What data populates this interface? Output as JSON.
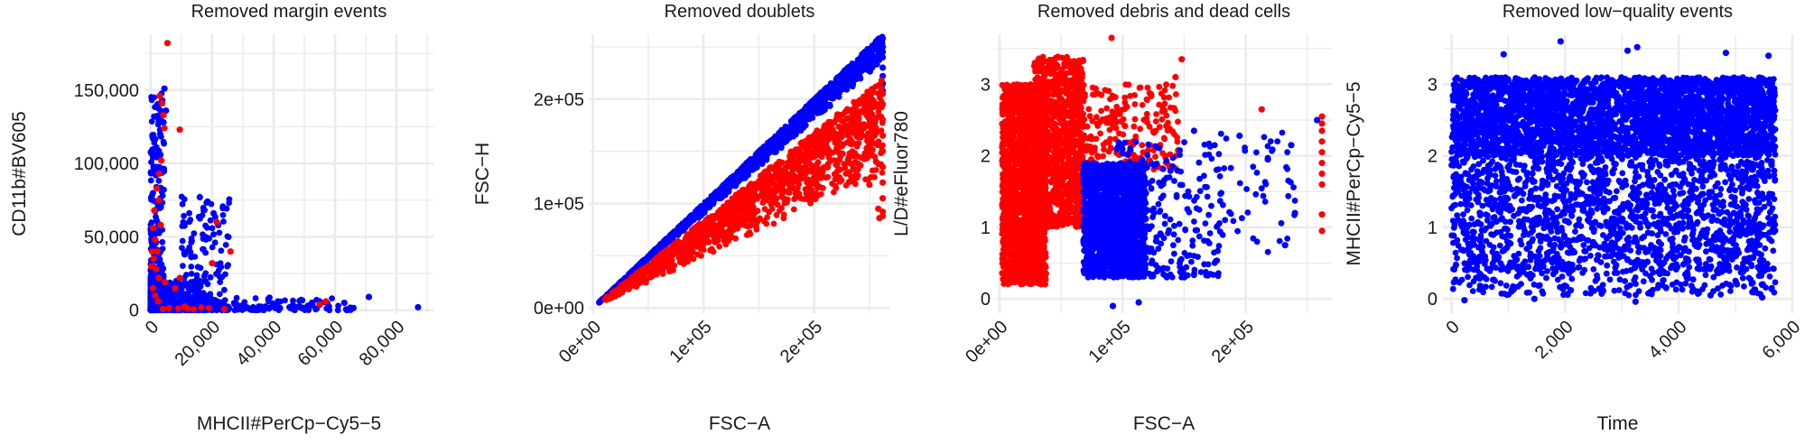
{
  "colors": {
    "kept": "#0000ff",
    "removed": "#ff0000",
    "panel_bg": "#ffffff",
    "grid": "#ebebeb"
  },
  "chart_data": [
    {
      "type": "scatter",
      "title": "Removed margin events",
      "xlabel": "MHCII#PerCp−Cy5−5",
      "ylabel": "CD11b#BV605",
      "xlim": [
        -2000,
        92000
      ],
      "ylim": [
        -2000,
        188000
      ],
      "x_ticks": [
        0,
        20000,
        40000,
        60000,
        80000
      ],
      "x_tick_labels": [
        "0",
        "20,000",
        "40,000",
        "60,000",
        "80,000"
      ],
      "y_ticks": [
        0,
        50000,
        100000,
        150000
      ],
      "y_tick_labels": [
        "0",
        "50,000",
        "100,000",
        "150,000"
      ],
      "x_tick_rotation": 45,
      "grid": true,
      "series": [
        {
          "color": "#0000ff",
          "clouds": [
            {
              "n": 900,
              "x": [
                0,
                16000
              ],
              "y": [
                0,
                20000
              ],
              "skew": 2.2
            },
            {
              "n": 180,
              "x": [
                0,
                4500
              ],
              "y": [
                20000,
                150000
              ],
              "skew": 1.6
            },
            {
              "n": 110,
              "x": [
                10000,
                26000
              ],
              "y": [
                5000,
                78000
              ],
              "skew": 1.2
            },
            {
              "n": 160,
              "x": [
                15000,
                66000
              ],
              "y": [
                0,
                9000
              ],
              "skew": 2.0
            }
          ],
          "points": [
            [
              4500,
              151000
            ],
            [
              3800,
              143000
            ],
            [
              5000,
              136000
            ],
            [
              4200,
              128000
            ],
            [
              3100,
              120000
            ],
            [
              16000,
              77000
            ],
            [
              18500,
              74000
            ],
            [
              20500,
              66000
            ],
            [
              22000,
              58000
            ],
            [
              19000,
              49000
            ],
            [
              49000,
              7000
            ],
            [
              55000,
              6000
            ],
            [
              63000,
              5000
            ],
            [
              71000,
              9000
            ],
            [
              87000,
              2000
            ],
            [
              58000,
              2500
            ],
            [
              66000,
              1500
            ]
          ]
        },
        {
          "color": "#ff0000",
          "points": [
            [
              5500,
              182000
            ],
            [
              3000,
              146000
            ],
            [
              3800,
              141000
            ],
            [
              4200,
              133000
            ],
            [
              4500,
              124000
            ],
            [
              9500,
              123000
            ],
            [
              3500,
              102000
            ],
            [
              2800,
              93000
            ],
            [
              2000,
              83000
            ],
            [
              1200,
              68000
            ],
            [
              800,
              56000
            ],
            [
              1500,
              48000
            ],
            [
              2200,
              40000
            ],
            [
              1000,
              35000
            ],
            [
              1800,
              28000
            ],
            [
              2600,
              22000
            ],
            [
              800,
              15000
            ],
            [
              1500,
              10000
            ],
            [
              2500,
              6000
            ],
            [
              6000,
              1500
            ],
            [
              4000,
              800
            ],
            [
              9000,
              1000
            ],
            [
              12000,
              1200
            ],
            [
              19000,
              1500
            ],
            [
              14000,
              700
            ],
            [
              24000,
              800
            ],
            [
              9500,
              22000
            ],
            [
              20000,
              32000
            ],
            [
              21500,
              60000
            ],
            [
              26000,
              40000
            ],
            [
              55000,
              4000
            ],
            [
              57000,
              6000
            ],
            [
              8000,
              15000
            ],
            [
              16500,
              1800
            ],
            [
              500,
              40000
            ],
            [
              3300,
              58000
            ],
            [
              4700,
              19000
            ],
            [
              2600,
              75000
            ],
            [
              200,
              30000
            ],
            [
              11000,
              2500
            ]
          ]
        }
      ]
    },
    {
      "type": "scatter",
      "title": "Removed doublets",
      "xlabel": "FSC−A",
      "ylabel": "FSC−H",
      "xlim": [
        -3000,
        268000
      ],
      "ylim": [
        -5000,
        262000
      ],
      "x_ticks": [
        0,
        100000,
        200000
      ],
      "x_tick_labels": [
        "0e+00",
        "1e+05",
        "2e+05"
      ],
      "y_ticks": [
        0,
        100000,
        200000
      ],
      "y_tick_labels": [
        "0e+00",
        "1e+05",
        "2e+05"
      ],
      "x_tick_rotation": 45,
      "grid": true,
      "series": [
        {
          "color": "#0000ff",
          "band": {
            "n": 1400,
            "x": [
              5000,
              262000
            ],
            "slope_hi": 1.0,
            "slope_lo": 0.9
          },
          "points": [
            [
              262000,
              258000
            ],
            [
              262000,
              250000
            ],
            [
              262000,
              240000
            ],
            [
              262000,
              230000
            ],
            [
              262000,
              222000
            ],
            [
              262000,
              215000
            ],
            [
              262000,
              208000
            ],
            [
              261000,
              212000
            ],
            [
              262000,
              245000
            ]
          ]
        },
        {
          "color": "#ff0000",
          "band": {
            "n": 1300,
            "x": [
              10000,
              262000
            ],
            "slope_hi": 0.84,
            "slope_lo": 0.48
          },
          "points": [
            [
              262000,
              205000
            ],
            [
              262000,
              195000
            ],
            [
              262000,
              180000
            ],
            [
              262000,
              165000
            ],
            [
              262000,
              150000
            ],
            [
              262000,
              135000
            ],
            [
              262000,
              120000
            ],
            [
              262000,
              105000
            ],
            [
              262000,
              92000
            ],
            [
              262000,
              88000
            ],
            [
              259000,
              86000
            ],
            [
              258000,
              95000
            ],
            [
              256000,
              140000
            ],
            [
              254000,
              175000
            ],
            [
              250000,
              118000
            ]
          ]
        }
      ]
    },
    {
      "type": "scatter",
      "title": "Removed debris and dead cells",
      "xlabel": "FSC−A",
      "ylabel": "L/D#eFluor780",
      "xlim": [
        -3000,
        270000
      ],
      "ylim": [
        -0.2,
        3.7
      ],
      "x_ticks": [
        0,
        100000,
        200000
      ],
      "x_tick_labels": [
        "0e+00",
        "1e+05",
        "2e+05"
      ],
      "y_ticks": [
        0,
        1,
        2,
        3
      ],
      "y_tick_labels": [
        "0",
        "1",
        "2",
        "3"
      ],
      "x_tick_rotation": 45,
      "grid": true,
      "series": [
        {
          "color": "#ff0000",
          "clouds": [
            {
              "n": 1700,
              "x": [
                2000,
                38000
              ],
              "y": [
                0.2,
                3.0
              ],
              "skew": 1.0
            },
            {
              "n": 900,
              "x": [
                28000,
                68000
              ],
              "y": [
                1.0,
                3.4
              ],
              "skew": 1.0
            },
            {
              "n": 260,
              "x": [
                60000,
                145000
              ],
              "y": [
                1.8,
                3.0
              ],
              "skew": 1.3
            }
          ],
          "points": [
            [
              91000,
              3.65
            ],
            [
              148000,
              3.35
            ],
            [
              143000,
              3.1
            ],
            [
              213000,
              2.65
            ],
            [
              262000,
              2.55
            ],
            [
              262000,
              2.45
            ],
            [
              262000,
              2.35
            ],
            [
              262000,
              2.2
            ],
            [
              262000,
              2.05
            ],
            [
              262000,
              1.9
            ],
            [
              262000,
              1.75
            ],
            [
              262000,
              1.6
            ],
            [
              262000,
              1.18
            ],
            [
              262000,
              0.95
            ]
          ]
        },
        {
          "color": "#0000ff",
          "clouds": [
            {
              "n": 1600,
              "x": [
                68000,
                118000
              ],
              "y": [
                0.3,
                1.9
              ],
              "skew": 1.0
            },
            {
              "n": 300,
              "x": [
                95000,
                180000
              ],
              "y": [
                0.3,
                2.2
              ],
              "skew": 1.4
            },
            {
              "n": 60,
              "x": [
                150000,
                240000
              ],
              "y": [
                0.6,
                2.4
              ],
              "skew": 1.0
            }
          ],
          "points": [
            [
              158000,
              2.35
            ],
            [
              195000,
              2.28
            ],
            [
              218000,
              1.95
            ],
            [
              237000,
              2.15
            ],
            [
              240000,
              1.2
            ],
            [
              232000,
              0.75
            ],
            [
              258000,
              2.5
            ],
            [
              92000,
              -0.1
            ],
            [
              113000,
              -0.05
            ]
          ]
        }
      ]
    },
    {
      "type": "scatter",
      "title": "Removed low−quality events",
      "xlabel": "Time",
      "ylabel": "MHCII#PerCp−Cy5−5",
      "xlim": [
        -150,
        6000
      ],
      "ylim": [
        -0.2,
        3.7
      ],
      "x_ticks": [
        0,
        2000,
        4000,
        6000
      ],
      "x_tick_labels": [
        "0",
        "2,000",
        "4,000",
        "6,000"
      ],
      "y_ticks": [
        0,
        1,
        2,
        3
      ],
      "y_tick_labels": [
        "0",
        "1",
        "2",
        "3"
      ],
      "x_tick_rotation": 45,
      "grid": true,
      "series": [
        {
          "color": "#0000ff",
          "clouds": [
            {
              "n": 3200,
              "x": [
                0,
                5700
              ],
              "y": [
                2.0,
                3.1
              ],
              "skew": 1.0
            },
            {
              "n": 1600,
              "x": [
                0,
                5700
              ],
              "y": [
                0.4,
                2.0
              ],
              "skew": 1.0
            },
            {
              "n": 220,
              "x": [
                0,
                5700
              ],
              "y": [
                0.05,
                0.45
              ],
              "skew": 1.0
            }
          ],
          "points": [
            [
              1920,
              3.6
            ],
            [
              3270,
              3.52
            ],
            [
              920,
              3.42
            ],
            [
              5580,
              3.4
            ],
            [
              4830,
              3.44
            ],
            [
              3100,
              3.47
            ],
            [
              230,
              -0.02
            ],
            [
              1460,
              0.0
            ],
            [
              3240,
              -0.04
            ],
            [
              4560,
              0.05
            ],
            [
              5470,
              0.02
            ],
            [
              2100,
              0.12
            ],
            [
              5000,
              0.25
            ]
          ]
        }
      ]
    }
  ]
}
